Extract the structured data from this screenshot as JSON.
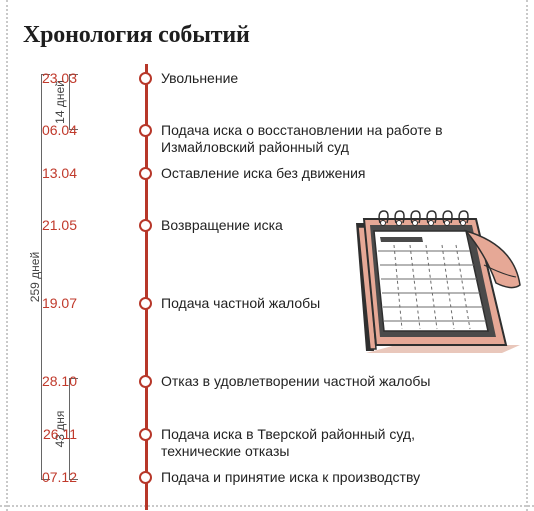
{
  "title": "Хронология событий",
  "colors": {
    "accent": "#b73729",
    "date_text": "#c0392b",
    "calendar_fill": "#e6a896",
    "calendar_dark": "#3b3b3b"
  },
  "events": [
    {
      "date": "23.03",
      "text": "Увольнение"
    },
    {
      "date": "06.04",
      "text": "Подача иска о восстановлении на работе в Измайловский районный суд"
    },
    {
      "date": "13.04",
      "text": "Оставление иска без движения"
    },
    {
      "date": "21.05",
      "text": "Возвращение иска"
    },
    {
      "date": "19.07",
      "text": "Подача частной жалобы"
    },
    {
      "date": "28.10",
      "text": "Отказ в удовлетворении частной жалобы"
    },
    {
      "date": "26.11",
      "text": "Подача иска в Тверской районный суд, технические отказы"
    },
    {
      "date": "07.12",
      "text": "Подача и принятие иска к производству"
    }
  ],
  "spans": {
    "total": "259 дней",
    "first": "14 дней",
    "last": "43 дня"
  },
  "illustration": "calendar-icon"
}
